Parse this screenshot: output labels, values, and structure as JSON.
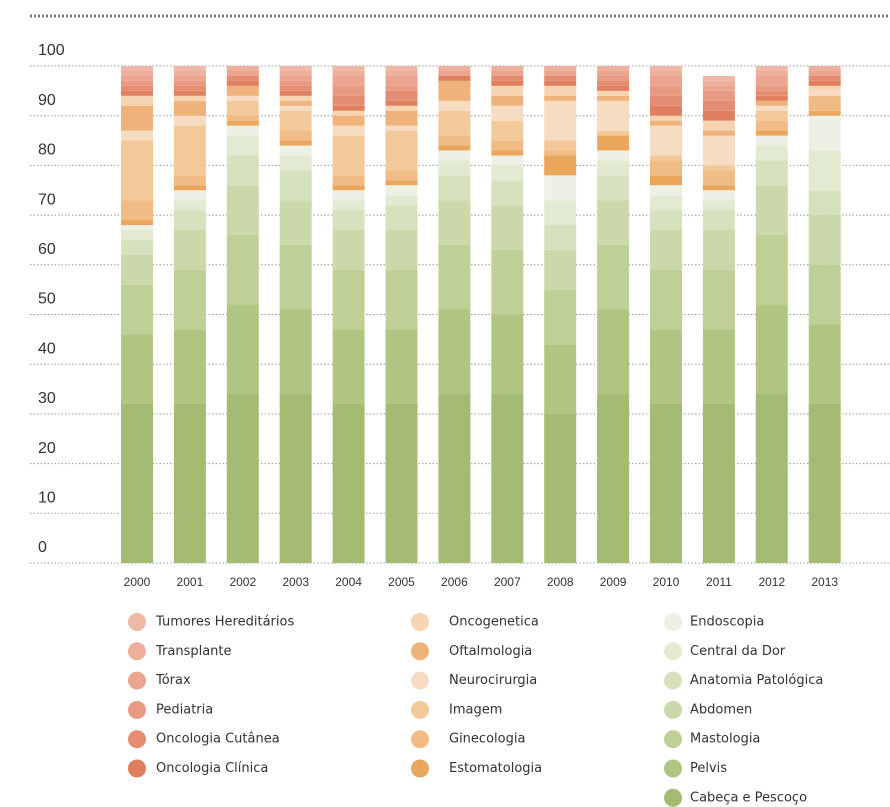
{
  "chart_data": {
    "type": "stacked_bar",
    "categories": [
      "2000",
      "2001",
      "2002",
      "2003",
      "2004",
      "2005",
      "2006",
      "2007",
      "2008",
      "2009",
      "2010",
      "2011",
      "2012",
      "2013"
    ],
    "ylim": [
      0,
      100
    ],
    "yticks": [
      0,
      10,
      20,
      30,
      40,
      50,
      60,
      70,
      80,
      90,
      100
    ],
    "grid": true,
    "series": [
      {
        "name": "Tumores Hereditários",
        "color": "#efb9a8",
        "values": [
          1,
          1,
          0,
          1,
          1,
          1,
          0,
          0,
          0,
          0,
          1,
          1,
          1,
          0
        ]
      },
      {
        "name": "Transplante",
        "color": "#eeb09c",
        "values": [
          1,
          1,
          1,
          1,
          1,
          1,
          1,
          1,
          1,
          1,
          1,
          1,
          1,
          1
        ]
      },
      {
        "name": "Tórax",
        "color": "#eba58f",
        "values": [
          1,
          1,
          1,
          1,
          2,
          2,
          1,
          1,
          1,
          1,
          2,
          1,
          2,
          1
        ]
      },
      {
        "name": "Pediatria",
        "color": "#e99a82",
        "values": [
          1,
          1,
          0,
          1,
          2,
          1,
          0,
          0,
          0,
          1,
          2,
          2,
          1,
          0
        ]
      },
      {
        "name": "Oncologia Cutânea",
        "color": "#e48d72",
        "values": [
          1,
          1,
          1,
          1,
          2,
          2,
          0,
          1,
          1,
          1,
          2,
          2,
          1,
          1
        ]
      },
      {
        "name": "Oncologia Clínica",
        "color": "#df7f5f",
        "values": [
          1,
          1,
          1,
          1,
          1,
          1,
          1,
          1,
          1,
          1,
          2,
          2,
          1,
          1
        ]
      },
      {
        "name": "Oncogenetica",
        "color": "#f6d4b2",
        "values": [
          2,
          1,
          0,
          1,
          1,
          1,
          0,
          2,
          2,
          1,
          1,
          2,
          0,
          1
        ]
      },
      {
        "name": "Oftalmologia",
        "color": "#eeb27a",
        "values": [
          5,
          3,
          2,
          1,
          2,
          3,
          4,
          2,
          1,
          1,
          1,
          1,
          1,
          0
        ]
      },
      {
        "name": "Neurocirurgia",
        "color": "#f6dcc2",
        "values": [
          2,
          2,
          1,
          1,
          2,
          1,
          2,
          3,
          8,
          6,
          6,
          6,
          1,
          1
        ]
      },
      {
        "name": "Imagem",
        "color": "#f3c99a",
        "values": [
          12,
          10,
          3,
          4,
          8,
          8,
          5,
          4,
          2,
          1,
          1,
          1,
          2,
          0
        ]
      },
      {
        "name": "Ginecologia",
        "color": "#f0bb84",
        "values": [
          4,
          2,
          1,
          2,
          2,
          2,
          2,
          2,
          1,
          0,
          3,
          3,
          2,
          3
        ]
      },
      {
        "name": "Estomatologia",
        "color": "#eaa75c",
        "values": [
          1,
          1,
          1,
          1,
          1,
          1,
          1,
          1,
          4,
          3,
          2,
          1,
          1,
          1
        ]
      },
      {
        "name": "Endoscopia",
        "color": "#edf0e4",
        "values": [
          1,
          2,
          2,
          2,
          2,
          2,
          2,
          2,
          5,
          2,
          2,
          2,
          2,
          7
        ]
      },
      {
        "name": "Central da Dor",
        "color": "#e3ead2",
        "values": [
          2,
          2,
          4,
          3,
          2,
          2,
          3,
          3,
          5,
          3,
          3,
          2,
          3,
          8
        ]
      },
      {
        "name": "Anatomia Patológica",
        "color": "#d6e1bd",
        "values": [
          3,
          4,
          6,
          6,
          4,
          5,
          5,
          5,
          5,
          5,
          4,
          4,
          5,
          5
        ]
      },
      {
        "name": "Abdomen",
        "color": "#cbd9aa",
        "values": [
          6,
          8,
          10,
          9,
          8,
          8,
          9,
          9,
          8,
          9,
          8,
          8,
          10,
          10
        ]
      },
      {
        "name": "Mastologia",
        "color": "#bfd097",
        "values": [
          10,
          12,
          14,
          13,
          12,
          12,
          13,
          13,
          11,
          13,
          12,
          12,
          14,
          12
        ]
      },
      {
        "name": "Pelvis",
        "color": "#b1c583",
        "values": [
          14,
          15,
          18,
          17,
          15,
          15,
          17,
          16,
          14,
          17,
          15,
          15,
          18,
          16
        ]
      },
      {
        "name": "Cabeça e Pescoço",
        "color": "#a3bb72",
        "values": [
          32,
          32,
          34,
          34,
          32,
          32,
          34,
          34,
          30,
          34,
          32,
          32,
          34,
          32
        ]
      }
    ]
  }
}
